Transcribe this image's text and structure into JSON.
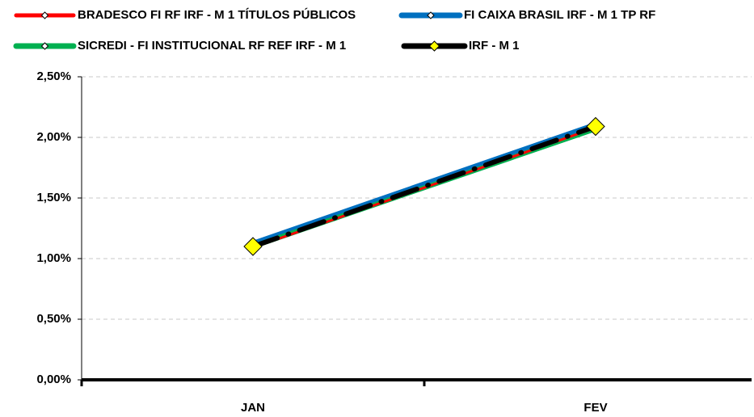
{
  "chart_data": {
    "type": "line",
    "categories": [
      "JAN",
      "FEV"
    ],
    "series": [
      {
        "name": "BRADESCO FI RF IRF - M 1 TÍTULOS PÚBLICOS",
        "color": "#ff0000",
        "values": [
          1.09,
          2.08
        ]
      },
      {
        "name": "FI CAIXA BRASIL IRF - M 1 TP RF",
        "color": "#0070c0",
        "values": [
          1.12,
          2.1
        ]
      },
      {
        "name": "SICREDI - FI INSTITUCIONAL RF REF IRF - M 1",
        "color": "#00b050",
        "values": [
          1.1,
          2.07
        ]
      },
      {
        "name": "IRF - M 1",
        "color": "#000000",
        "values": [
          1.1,
          2.09
        ]
      }
    ],
    "ylim": [
      0,
      2.5
    ],
    "yticks": [
      {
        "value": 0,
        "label": "0,00%"
      },
      {
        "value": 0.5,
        "label": "0,50%"
      },
      {
        "value": 1,
        "label": "1,00%"
      },
      {
        "value": 1.5,
        "label": "1,50%"
      },
      {
        "value": 2,
        "label": "2,00%"
      },
      {
        "value": 2.5,
        "label": "2,50%"
      }
    ],
    "grid": true
  }
}
